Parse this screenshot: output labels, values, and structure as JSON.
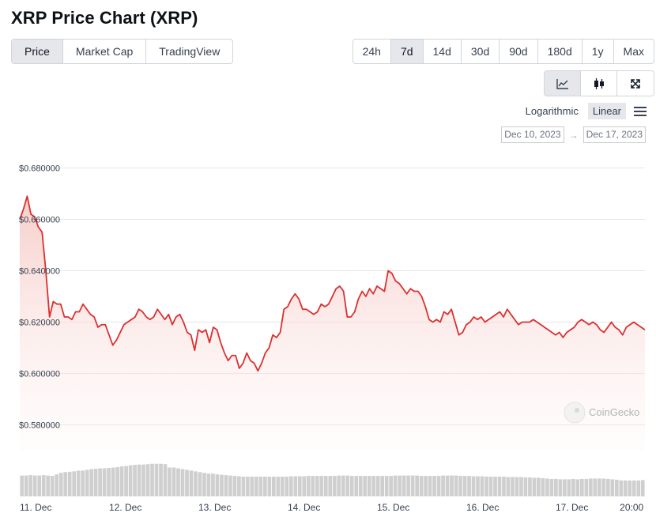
{
  "title": "XRP Price Chart (XRP)",
  "tabs": [
    {
      "label": "Price",
      "active": true
    },
    {
      "label": "Market Cap",
      "active": false
    },
    {
      "label": "TradingView",
      "active": false
    }
  ],
  "ranges": [
    {
      "label": "24h",
      "active": false
    },
    {
      "label": "7d",
      "active": true
    },
    {
      "label": "14d",
      "active": false
    },
    {
      "label": "30d",
      "active": false
    },
    {
      "label": "90d",
      "active": false
    },
    {
      "label": "180d",
      "active": false
    },
    {
      "label": "1y",
      "active": false
    },
    {
      "label": "Max",
      "active": false
    }
  ],
  "chart_types": [
    {
      "icon": "line-chart-icon",
      "active": true
    },
    {
      "icon": "candlestick-icon",
      "active": false
    },
    {
      "icon": "fullscreen-icon",
      "active": false
    }
  ],
  "scale": {
    "logarithmic": "Logarithmic",
    "linear": "Linear",
    "active": "linear",
    "menu_icon": "hamburger-menu-icon"
  },
  "date_range": {
    "from": "Dec 10, 2023",
    "to": "Dec 17, 2023",
    "arrow": "→"
  },
  "watermark": "CoinGecko",
  "colors": {
    "line": "#dc2f2f",
    "fill_top": "#f5c9c4",
    "volume": "#cfcfcf",
    "grid": "#e6e6e6"
  },
  "chart_data": {
    "type": "line",
    "title": "XRP Price Chart (XRP)",
    "ylim": [
      0.57,
      0.69
    ],
    "yticks": [
      {
        "value": 0.58,
        "label": "$0.580000"
      },
      {
        "value": 0.6,
        "label": "$0.600000"
      },
      {
        "value": 0.62,
        "label": "$0.620000"
      },
      {
        "value": 0.64,
        "label": "$0.640000"
      },
      {
        "value": 0.66,
        "label": "$0.660000"
      },
      {
        "value": 0.68,
        "label": "$0.680000"
      }
    ],
    "xrange_hours": [
      0,
      168
    ],
    "xticks": [
      {
        "t": 0,
        "label": "11. Dec"
      },
      {
        "t": 24,
        "label": "12. Dec"
      },
      {
        "t": 48,
        "label": "13. Dec"
      },
      {
        "t": 72,
        "label": "14. Dec"
      },
      {
        "t": 96,
        "label": "15. Dec"
      },
      {
        "t": 120,
        "label": "16. Dec"
      },
      {
        "t": 144,
        "label": "17. Dec"
      },
      {
        "t": 164,
        "label": "20:00"
      }
    ],
    "series": [
      {
        "name": "Price",
        "points": [
          [
            0,
            0.66
          ],
          [
            1,
            0.664
          ],
          [
            2,
            0.669
          ],
          [
            3,
            0.662
          ],
          [
            4,
            0.661
          ],
          [
            5,
            0.657
          ],
          [
            6,
            0.655
          ],
          [
            7,
            0.64
          ],
          [
            8,
            0.622
          ],
          [
            9,
            0.628
          ],
          [
            10,
            0.627
          ],
          [
            11,
            0.627
          ],
          [
            12,
            0.622
          ],
          [
            13,
            0.622
          ],
          [
            14,
            0.621
          ],
          [
            15,
            0.624
          ],
          [
            16,
            0.624
          ],
          [
            17,
            0.627
          ],
          [
            18,
            0.625
          ],
          [
            19,
            0.623
          ],
          [
            20,
            0.622
          ],
          [
            21,
            0.618
          ],
          [
            22,
            0.619
          ],
          [
            23,
            0.619
          ],
          [
            24,
            0.615
          ],
          [
            25,
            0.611
          ],
          [
            26,
            0.613
          ],
          [
            27,
            0.616
          ],
          [
            28,
            0.619
          ],
          [
            29,
            0.62
          ],
          [
            30,
            0.621
          ],
          [
            31,
            0.622
          ],
          [
            32,
            0.625
          ],
          [
            33,
            0.624
          ],
          [
            34,
            0.622
          ],
          [
            35,
            0.621
          ],
          [
            36,
            0.622
          ],
          [
            37,
            0.625
          ],
          [
            38,
            0.623
          ],
          [
            39,
            0.621
          ],
          [
            40,
            0.623
          ],
          [
            41,
            0.619
          ],
          [
            42,
            0.622
          ],
          [
            43,
            0.623
          ],
          [
            44,
            0.62
          ],
          [
            45,
            0.616
          ],
          [
            46,
            0.615
          ],
          [
            47,
            0.609
          ],
          [
            48,
            0.617
          ],
          [
            49,
            0.616
          ],
          [
            50,
            0.617
          ],
          [
            51,
            0.612
          ],
          [
            52,
            0.618
          ],
          [
            53,
            0.617
          ],
          [
            54,
            0.612
          ],
          [
            55,
            0.608
          ],
          [
            56,
            0.605
          ],
          [
            57,
            0.607
          ],
          [
            58,
            0.607
          ],
          [
            59,
            0.602
          ],
          [
            60,
            0.604
          ],
          [
            61,
            0.608
          ],
          [
            62,
            0.605
          ],
          [
            63,
            0.604
          ],
          [
            64,
            0.601
          ],
          [
            65,
            0.604
          ],
          [
            66,
            0.608
          ],
          [
            67,
            0.61
          ],
          [
            68,
            0.615
          ],
          [
            69,
            0.614
          ],
          [
            70,
            0.616
          ],
          [
            71,
            0.625
          ],
          [
            72,
            0.626
          ],
          [
            73,
            0.629
          ],
          [
            74,
            0.631
          ],
          [
            75,
            0.629
          ],
          [
            76,
            0.625
          ],
          [
            77,
            0.625
          ],
          [
            78,
            0.624
          ],
          [
            79,
            0.623
          ],
          [
            80,
            0.624
          ],
          [
            81,
            0.627
          ],
          [
            82,
            0.626
          ],
          [
            83,
            0.627
          ],
          [
            84,
            0.63
          ],
          [
            85,
            0.633
          ],
          [
            86,
            0.634
          ],
          [
            87,
            0.632
          ],
          [
            88,
            0.622
          ],
          [
            89,
            0.622
          ],
          [
            90,
            0.624
          ],
          [
            91,
            0.629
          ],
          [
            92,
            0.632
          ],
          [
            93,
            0.63
          ],
          [
            94,
            0.633
          ],
          [
            95,
            0.631
          ],
          [
            96,
            0.634
          ],
          [
            97,
            0.633
          ],
          [
            98,
            0.632
          ],
          [
            99,
            0.64
          ],
          [
            100,
            0.639
          ],
          [
            101,
            0.636
          ],
          [
            102,
            0.635
          ],
          [
            103,
            0.633
          ],
          [
            104,
            0.631
          ],
          [
            105,
            0.633
          ],
          [
            106,
            0.632
          ],
          [
            107,
            0.632
          ],
          [
            108,
            0.63
          ],
          [
            109,
            0.626
          ],
          [
            110,
            0.621
          ],
          [
            111,
            0.62
          ],
          [
            112,
            0.621
          ],
          [
            113,
            0.62
          ],
          [
            114,
            0.624
          ],
          [
            115,
            0.623
          ],
          [
            116,
            0.625
          ],
          [
            117,
            0.62
          ],
          [
            118,
            0.615
          ],
          [
            119,
            0.616
          ],
          [
            120,
            0.619
          ],
          [
            121,
            0.62
          ],
          [
            122,
            0.622
          ],
          [
            123,
            0.621
          ],
          [
            124,
            0.622
          ],
          [
            125,
            0.62
          ],
          [
            126,
            0.621
          ],
          [
            127,
            0.622
          ],
          [
            128,
            0.623
          ],
          [
            129,
            0.624
          ],
          [
            130,
            0.622
          ],
          [
            131,
            0.625
          ],
          [
            132,
            0.623
          ],
          [
            133,
            0.621
          ],
          [
            134,
            0.619
          ],
          [
            135,
            0.62
          ],
          [
            136,
            0.62
          ],
          [
            137,
            0.62
          ],
          [
            138,
            0.621
          ],
          [
            139,
            0.62
          ],
          [
            140,
            0.619
          ],
          [
            141,
            0.618
          ],
          [
            142,
            0.617
          ],
          [
            143,
            0.616
          ],
          [
            144,
            0.615
          ],
          [
            145,
            0.616
          ],
          [
            146,
            0.614
          ],
          [
            147,
            0.616
          ],
          [
            148,
            0.617
          ],
          [
            149,
            0.618
          ],
          [
            150,
            0.62
          ],
          [
            151,
            0.621
          ],
          [
            152,
            0.62
          ],
          [
            153,
            0.619
          ],
          [
            154,
            0.62
          ],
          [
            155,
            0.619
          ],
          [
            156,
            0.617
          ],
          [
            157,
            0.616
          ],
          [
            158,
            0.618
          ],
          [
            159,
            0.62
          ],
          [
            160,
            0.618
          ],
          [
            161,
            0.617
          ],
          [
            162,
            0.615
          ],
          [
            163,
            0.618
          ],
          [
            164,
            0.619
          ],
          [
            165,
            0.62
          ],
          [
            166,
            0.619
          ],
          [
            167,
            0.618
          ],
          [
            168,
            0.617
          ]
        ]
      }
    ],
    "volume_levels": [
      0.55,
      0.55,
      0.56,
      0.55,
      0.55,
      0.56,
      0.55,
      0.54,
      0.58,
      0.62,
      0.64,
      0.65,
      0.66,
      0.68,
      0.68,
      0.7,
      0.72,
      0.73,
      0.74,
      0.74,
      0.75,
      0.76,
      0.77,
      0.79,
      0.8,
      0.82,
      0.83,
      0.84,
      0.84,
      0.85,
      0.86,
      0.86,
      0.86,
      0.85,
      0.76,
      0.76,
      0.74,
      0.72,
      0.7,
      0.68,
      0.66,
      0.64,
      0.62,
      0.6,
      0.6,
      0.58,
      0.57,
      0.56,
      0.55,
      0.54,
      0.53,
      0.52,
      0.52,
      0.52,
      0.52,
      0.52,
      0.52,
      0.52,
      0.52,
      0.52,
      0.52,
      0.52,
      0.53,
      0.53,
      0.53,
      0.53,
      0.54,
      0.54,
      0.54,
      0.54,
      0.54,
      0.54,
      0.54,
      0.55,
      0.55,
      0.55,
      0.54,
      0.54,
      0.54,
      0.54,
      0.54,
      0.54,
      0.54,
      0.54,
      0.54,
      0.54,
      0.55,
      0.55,
      0.55,
      0.55,
      0.55,
      0.55,
      0.54,
      0.54,
      0.54,
      0.54,
      0.54,
      0.55,
      0.55,
      0.55,
      0.55,
      0.54,
      0.54,
      0.54,
      0.53,
      0.53,
      0.53,
      0.52,
      0.52,
      0.52,
      0.52,
      0.52,
      0.51,
      0.51,
      0.51,
      0.51,
      0.5,
      0.5,
      0.49,
      0.49,
      0.48,
      0.47,
      0.46,
      0.46,
      0.45,
      0.45,
      0.45,
      0.46,
      0.45,
      0.46,
      0.46,
      0.47,
      0.47,
      0.47,
      0.47,
      0.46,
      0.45,
      0.44,
      0.42,
      0.42,
      0.42,
      0.42,
      0.42,
      0.43
    ]
  }
}
